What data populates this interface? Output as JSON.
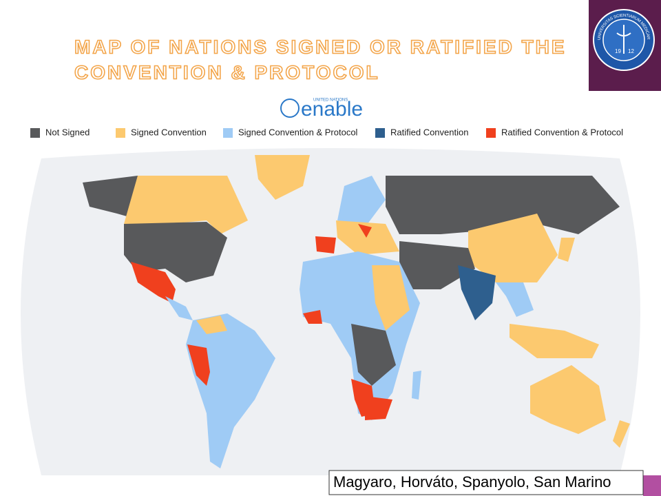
{
  "header": {
    "title_lines": [
      "MAP OF NATIONS SIGNED OR RATIFIED THE",
      "CONVENTION & PROTOCOL"
    ]
  },
  "logo": {
    "org": "UNITED NATIONS",
    "name": "enable"
  },
  "seal": {
    "text": "UNIVERSITAS SCIENTIARUM MEDICARUM DEBRECENIENSIS",
    "year_left": "19",
    "year_right": "12"
  },
  "legend": [
    {
      "label": "Not Signed",
      "color": "#58595b"
    },
    {
      "label": "Signed Convention",
      "color": "#fcc96f"
    },
    {
      "label": "Signed Convention & Protocol",
      "color": "#9fcbf5"
    },
    {
      "label": "Ratified Convention",
      "color": "#2e5f8e"
    },
    {
      "label": "Ratified Convention & Protocol",
      "color": "#f0401e"
    }
  ],
  "caption": "Magyaro, Horváto, Spanyolo, San Marino"
}
